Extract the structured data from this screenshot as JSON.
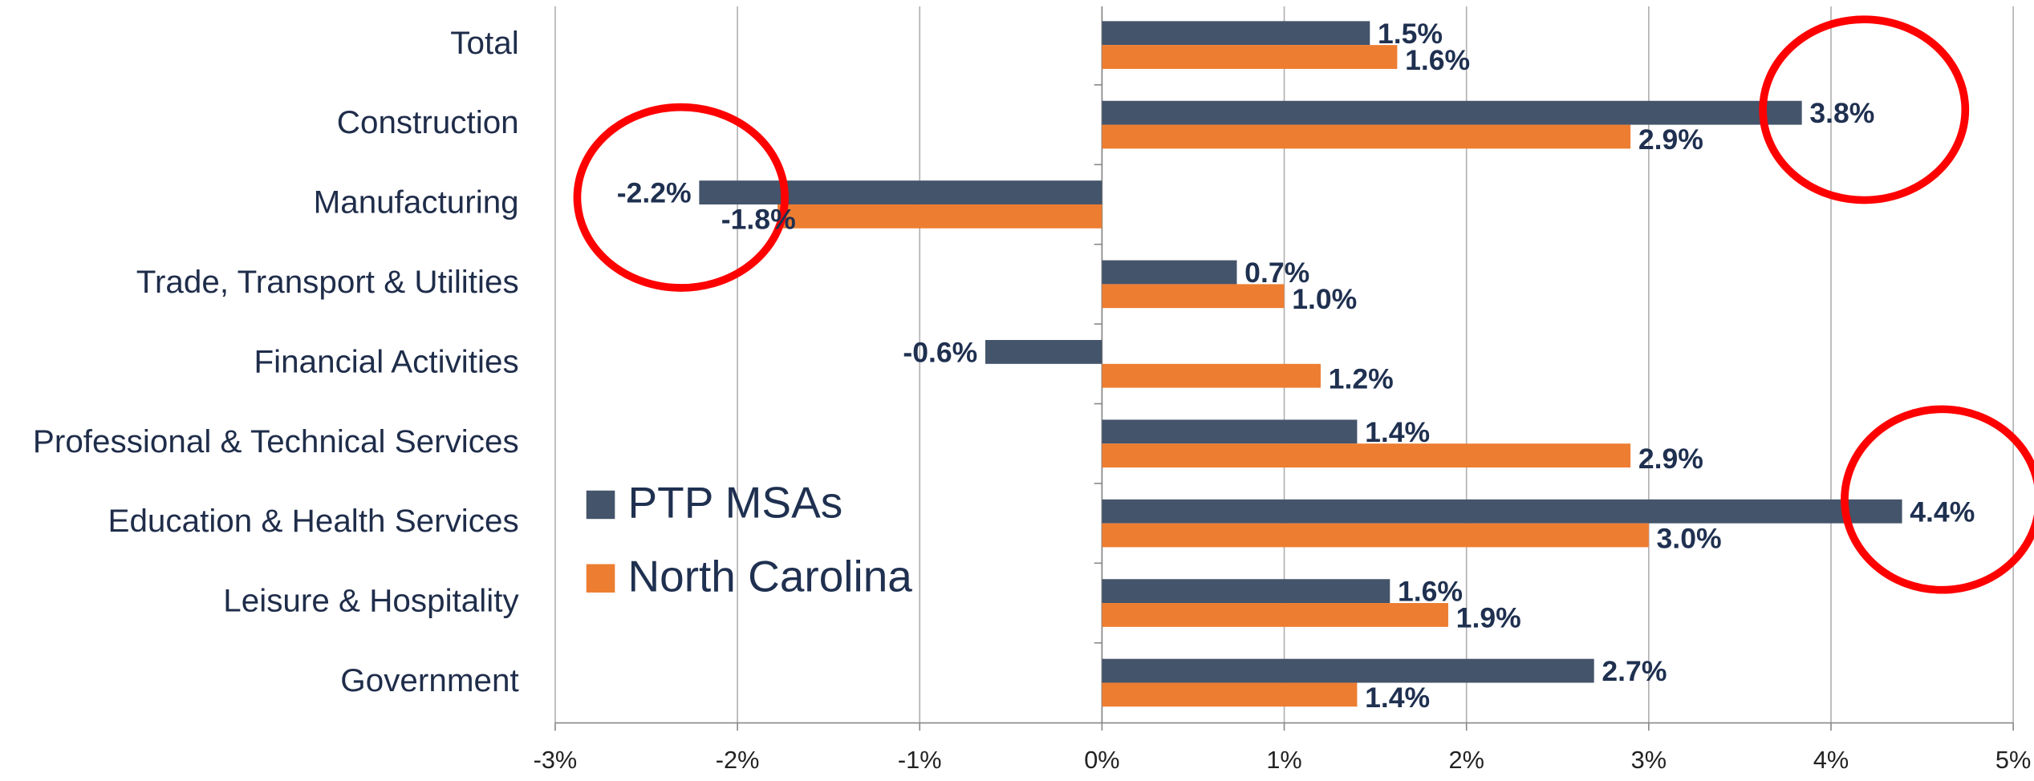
{
  "chart_data": {
    "type": "hbar",
    "categories": [
      "Total",
      "Construction",
      "Manufacturing",
      "Trade, Transport & Utilities",
      "Financial Activities",
      "Professional & Technical Services",
      "Education & Health Services",
      "Leisure & Hospitality",
      "Government"
    ],
    "series": [
      {
        "name": "PTP MSAs",
        "color": "#44546a",
        "values": [
          1.47,
          3.84,
          -2.21,
          0.74,
          -0.64,
          1.4,
          4.39,
          1.58,
          2.7
        ],
        "value_labels": [
          "1.5%",
          "3.8%",
          "-2.2%",
          "0.7%",
          "-0.6%",
          "1.4%",
          "4.4%",
          "1.6%",
          "2.7%"
        ]
      },
      {
        "name": "North Carolina",
        "color": "#ed7d31",
        "values": [
          1.62,
          2.9,
          -1.78,
          1.0,
          1.2,
          2.9,
          3.0,
          1.9,
          1.4
        ],
        "value_labels": [
          "1.6%",
          "2.9%",
          "-1.8%",
          "1.0%",
          "1.2%",
          "2.9%",
          "3.0%",
          "1.9%",
          "1.4%"
        ]
      }
    ],
    "xlim": [
      -3,
      5
    ],
    "xticks": [
      {
        "value": -3,
        "label": "-3%"
      },
      {
        "value": -2,
        "label": "-2%"
      },
      {
        "value": -1,
        "label": "-1%"
      },
      {
        "value": 0,
        "label": "0%"
      },
      {
        "value": 1,
        "label": "1%"
      },
      {
        "value": 2,
        "label": "2%"
      },
      {
        "value": 3,
        "label": "3%"
      },
      {
        "value": 4,
        "label": "4%"
      },
      {
        "value": 5,
        "label": "5%"
      }
    ],
    "grid": true,
    "legend_position": "center-left"
  }
}
